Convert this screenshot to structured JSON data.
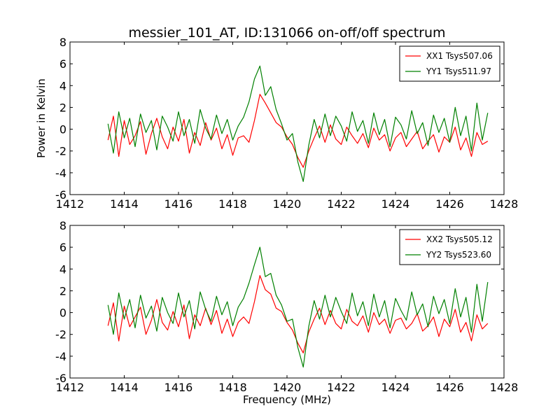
{
  "title": "messier_101_AT, ID:131066 on-off/off spectrum",
  "colors": {
    "xx": "#ff0000",
    "yy": "#008000",
    "axis": "#000000"
  },
  "chart_data": [
    {
      "type": "line",
      "title": "messier_101_AT, ID:131066 on-off/off spectrum",
      "xlabel": "",
      "ylabel": "Power in Kelvin",
      "xlim": [
        1412,
        1428
      ],
      "ylim": [
        -6,
        8
      ],
      "xticks": [
        "1412",
        "1414",
        "1416",
        "1418",
        "1420",
        "1422",
        "1424",
        "1426",
        "1428"
      ],
      "yticks": [
        "-6",
        "-4",
        "-2",
        "0",
        "2",
        "4",
        "6",
        "8"
      ],
      "grid": false,
      "legend_position": "top-right",
      "series": [
        {
          "name": "XX1 Tsys507.06",
          "color": "#ff0000",
          "x": [
            1413.4,
            1413.6,
            1413.8,
            1414.0,
            1414.2,
            1414.4,
            1414.6,
            1414.8,
            1415.0,
            1415.2,
            1415.4,
            1415.6,
            1415.8,
            1416.0,
            1416.2,
            1416.4,
            1416.6,
            1416.8,
            1417.0,
            1417.2,
            1417.4,
            1417.6,
            1417.8,
            1418.0,
            1418.2,
            1418.4,
            1418.6,
            1418.8,
            1419.0,
            1419.2,
            1419.4,
            1419.6,
            1419.8,
            1420.0,
            1420.2,
            1420.4,
            1420.6,
            1420.8,
            1421.0,
            1421.2,
            1421.4,
            1421.6,
            1421.8,
            1422.0,
            1422.2,
            1422.4,
            1422.6,
            1422.8,
            1423.0,
            1423.2,
            1423.4,
            1423.6,
            1423.8,
            1424.0,
            1424.2,
            1424.4,
            1424.6,
            1424.8,
            1425.0,
            1425.2,
            1425.4,
            1425.6,
            1425.8,
            1426.0,
            1426.2,
            1426.4,
            1426.6,
            1426.8,
            1427.0,
            1427.2,
            1427.4
          ],
          "y": [
            -1.0,
            1.2,
            -2.5,
            0.8,
            -1.4,
            -0.6,
            0.7,
            -2.3,
            -0.4,
            1.0,
            -0.7,
            -1.8,
            0.2,
            -1.1,
            0.9,
            -2.2,
            -0.3,
            -1.5,
            0.6,
            -1.0,
            0.1,
            -1.8,
            -0.5,
            -2.4,
            -0.8,
            -0.6,
            -1.2,
            0.8,
            3.2,
            2.4,
            1.5,
            0.6,
            0.2,
            -0.7,
            -1.4,
            -2.6,
            -3.5,
            -2.0,
            -0.8,
            0.3,
            -1.2,
            0.4,
            -0.9,
            -1.4,
            0.2,
            -0.6,
            -1.3,
            -0.4,
            -1.7,
            0.1,
            -1.0,
            -0.5,
            -2.0,
            -0.8,
            -0.3,
            -1.6,
            -0.9,
            -0.2,
            -1.8,
            -1.1,
            -0.5,
            -2.1,
            -0.7,
            -1.2,
            0.2,
            -1.9,
            -0.8,
            -2.5,
            -0.3,
            -1.4,
            -1.1
          ]
        },
        {
          "name": "YY1 Tsys511.97",
          "color": "#008000",
          "x": [
            1413.4,
            1413.6,
            1413.8,
            1414.0,
            1414.2,
            1414.4,
            1414.6,
            1414.8,
            1415.0,
            1415.2,
            1415.4,
            1415.6,
            1415.8,
            1416.0,
            1416.2,
            1416.4,
            1416.6,
            1416.8,
            1417.0,
            1417.2,
            1417.4,
            1417.6,
            1417.8,
            1418.0,
            1418.2,
            1418.4,
            1418.6,
            1418.8,
            1419.0,
            1419.2,
            1419.4,
            1419.6,
            1419.8,
            1420.0,
            1420.2,
            1420.4,
            1420.6,
            1420.8,
            1421.0,
            1421.2,
            1421.4,
            1421.6,
            1421.8,
            1422.0,
            1422.2,
            1422.4,
            1422.6,
            1422.8,
            1423.0,
            1423.2,
            1423.4,
            1423.6,
            1423.8,
            1424.0,
            1424.2,
            1424.4,
            1424.6,
            1424.8,
            1425.0,
            1425.2,
            1425.4,
            1425.6,
            1425.8,
            1426.0,
            1426.2,
            1426.4,
            1426.6,
            1426.8,
            1427.0,
            1427.2,
            1427.4
          ],
          "y": [
            0.5,
            -2.2,
            1.6,
            -0.8,
            1.0,
            -1.6,
            1.4,
            -0.3,
            0.8,
            -1.9,
            1.2,
            0.2,
            -1.1,
            1.6,
            -0.6,
            0.9,
            -1.3,
            1.8,
            0.1,
            -0.9,
            1.3,
            -0.4,
            0.9,
            -1.0,
            0.3,
            1.1,
            2.5,
            4.6,
            5.8,
            3.1,
            3.9,
            1.8,
            0.5,
            -1.0,
            -0.4,
            -3.0,
            -4.8,
            -1.5,
            0.9,
            -0.8,
            1.4,
            -0.6,
            1.2,
            0.3,
            -1.1,
            1.6,
            -0.2,
            0.8,
            -1.3,
            1.5,
            -0.5,
            0.9,
            -1.6,
            1.1,
            0.4,
            -0.9,
            1.7,
            -0.4,
            0.6,
            -1.5,
            1.3,
            -0.3,
            1.0,
            -1.2,
            2.0,
            -0.6,
            1.2,
            -2.0,
            2.4,
            -1.0,
            1.5
          ]
        }
      ]
    },
    {
      "type": "line",
      "title": "",
      "xlabel": "Frequency (MHz)",
      "ylabel": "",
      "xlim": [
        1412,
        1428
      ],
      "ylim": [
        -6,
        8
      ],
      "xticks": [
        "1412",
        "1414",
        "1416",
        "1418",
        "1420",
        "1422",
        "1424",
        "1426",
        "1428"
      ],
      "yticks": [
        "-6",
        "-4",
        "-2",
        "0",
        "2",
        "4",
        "6",
        "8"
      ],
      "grid": false,
      "legend_position": "top-right",
      "series": [
        {
          "name": "XX2 Tsys505.12",
          "color": "#ff0000",
          "x": [
            1413.4,
            1413.6,
            1413.8,
            1414.0,
            1414.2,
            1414.4,
            1414.6,
            1414.8,
            1415.0,
            1415.2,
            1415.4,
            1415.6,
            1415.8,
            1416.0,
            1416.2,
            1416.4,
            1416.6,
            1416.8,
            1417.0,
            1417.2,
            1417.4,
            1417.6,
            1417.8,
            1418.0,
            1418.2,
            1418.4,
            1418.6,
            1418.8,
            1419.0,
            1419.2,
            1419.4,
            1419.6,
            1419.8,
            1420.0,
            1420.2,
            1420.4,
            1420.6,
            1420.8,
            1421.0,
            1421.2,
            1421.4,
            1421.6,
            1421.8,
            1422.0,
            1422.2,
            1422.4,
            1422.6,
            1422.8,
            1423.0,
            1423.2,
            1423.4,
            1423.6,
            1423.8,
            1424.0,
            1424.2,
            1424.4,
            1424.6,
            1424.8,
            1425.0,
            1425.2,
            1425.4,
            1425.6,
            1425.8,
            1426.0,
            1426.2,
            1426.4,
            1426.6,
            1426.8,
            1427.0,
            1427.2,
            1427.4
          ],
          "y": [
            -1.2,
            0.9,
            -2.6,
            0.6,
            -1.3,
            -0.4,
            0.5,
            -2.0,
            -0.7,
            1.2,
            -0.9,
            -1.6,
            0.1,
            -1.3,
            0.7,
            -2.4,
            -0.2,
            -1.2,
            0.4,
            -1.1,
            0.2,
            -1.9,
            -0.6,
            -2.2,
            -0.9,
            -0.4,
            -1.0,
            1.0,
            3.4,
            2.1,
            1.7,
            0.4,
            0.1,
            -0.9,
            -1.6,
            -2.8,
            -3.7,
            -1.8,
            -0.6,
            0.4,
            -1.1,
            0.2,
            -1.0,
            -1.5,
            0.3,
            -0.8,
            -1.2,
            -0.3,
            -1.8,
            0.0,
            -1.1,
            -0.6,
            -1.9,
            -0.7,
            -0.5,
            -1.5,
            -1.0,
            -0.1,
            -1.7,
            -1.2,
            -0.4,
            -2.2,
            -0.6,
            -1.3,
            0.3,
            -1.8,
            -0.9,
            -2.6,
            -0.2,
            -1.5,
            -1.0
          ]
        },
        {
          "name": "YY2 Tsys523.60",
          "color": "#008000",
          "x": [
            1413.4,
            1413.6,
            1413.8,
            1414.0,
            1414.2,
            1414.4,
            1414.6,
            1414.8,
            1415.0,
            1415.2,
            1415.4,
            1415.6,
            1415.8,
            1416.0,
            1416.2,
            1416.4,
            1416.6,
            1416.8,
            1417.0,
            1417.2,
            1417.4,
            1417.6,
            1417.8,
            1418.0,
            1418.2,
            1418.4,
            1418.6,
            1418.8,
            1419.0,
            1419.2,
            1419.4,
            1419.6,
            1419.8,
            1420.0,
            1420.2,
            1420.4,
            1420.6,
            1420.8,
            1421.0,
            1421.2,
            1421.4,
            1421.6,
            1421.8,
            1422.0,
            1422.2,
            1422.4,
            1422.6,
            1422.8,
            1423.0,
            1423.2,
            1423.4,
            1423.6,
            1423.8,
            1424.0,
            1424.2,
            1424.4,
            1424.6,
            1424.8,
            1425.0,
            1425.2,
            1425.4,
            1425.6,
            1425.8,
            1426.0,
            1426.2,
            1426.4,
            1426.6,
            1426.8,
            1427.0,
            1427.2,
            1427.4
          ],
          "y": [
            0.7,
            -2.0,
            1.8,
            -0.6,
            1.2,
            -1.4,
            1.6,
            -0.5,
            0.6,
            -1.7,
            1.4,
            0.0,
            -1.0,
            1.8,
            -0.4,
            1.1,
            -1.5,
            1.9,
            0.3,
            -0.8,
            1.5,
            -0.2,
            1.0,
            -1.2,
            0.5,
            1.3,
            2.7,
            4.4,
            6.0,
            3.3,
            3.6,
            1.6,
            0.7,
            -0.8,
            -0.6,
            -3.2,
            -5.0,
            -1.3,
            1.1,
            -0.6,
            1.6,
            -0.4,
            1.4,
            0.1,
            -1.0,
            1.8,
            -0.3,
            1.0,
            -1.2,
            1.7,
            -0.4,
            1.1,
            -1.4,
            1.3,
            0.2,
            -0.7,
            1.9,
            -0.2,
            0.8,
            -1.3,
            1.5,
            -0.1,
            1.2,
            -1.0,
            2.2,
            -0.4,
            1.4,
            -1.8,
            2.6,
            -0.8,
            2.8
          ]
        }
      ]
    }
  ]
}
